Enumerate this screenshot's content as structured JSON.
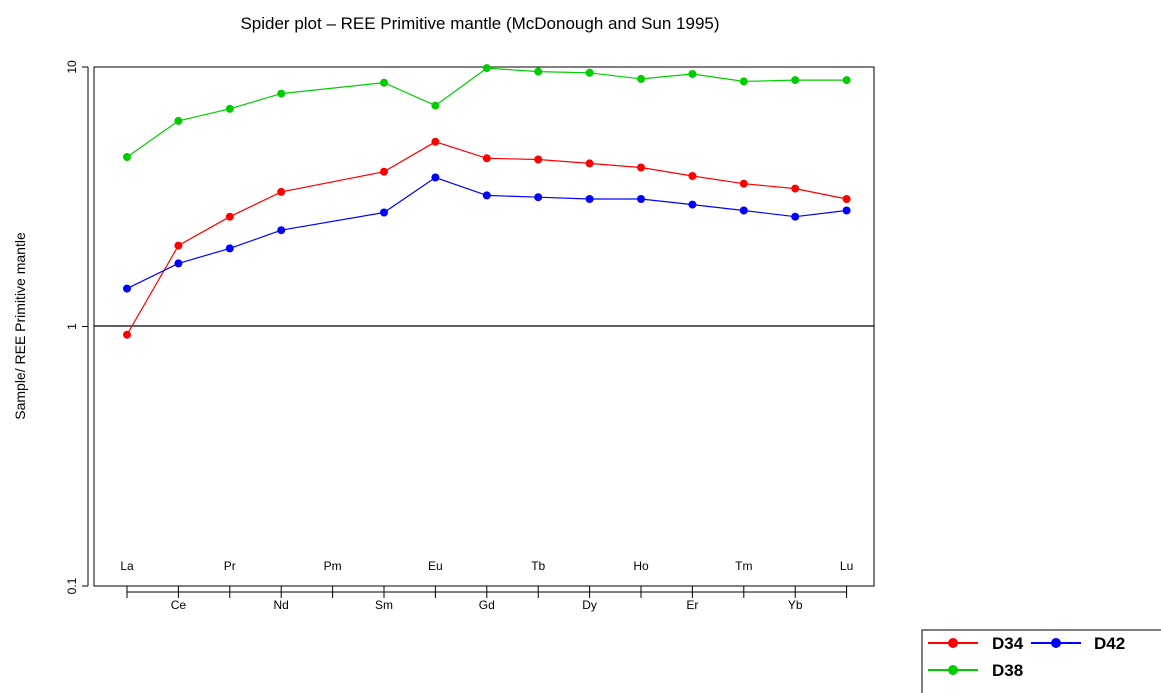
{
  "chart_data": {
    "type": "line",
    "title": "Spider plot –  REE Primitive mantle (McDonough  and  Sun 1995)",
    "xlabel": "",
    "ylabel": "Sample/ REE Primitive mantle",
    "y_scale": "log",
    "ylim": [
      0.1,
      10
    ],
    "y_ticks": [
      "0.1",
      "1",
      "10"
    ],
    "reference_line": 1,
    "grid": false,
    "categories": [
      "La",
      "Ce",
      "Pr",
      "Nd",
      "Pm",
      "Sm",
      "Eu",
      "Gd",
      "Tb",
      "Dy",
      "Ho",
      "Er",
      "Tm",
      "Yb",
      "Lu"
    ],
    "series": [
      {
        "name": "D34",
        "color": "#ff0000",
        "values": [
          0.93,
          2.05,
          2.65,
          3.3,
          null,
          3.95,
          5.15,
          4.45,
          4.4,
          4.25,
          4.1,
          3.8,
          3.55,
          3.4,
          3.1
        ]
      },
      {
        "name": "D38",
        "color": "#00cd00",
        "values": [
          4.5,
          6.2,
          6.9,
          7.9,
          null,
          8.7,
          7.1,
          9.9,
          9.6,
          9.5,
          9.0,
          9.4,
          8.8,
          8.9,
          8.9
        ]
      },
      {
        "name": "D42",
        "color": "#0000ff",
        "values": [
          1.4,
          1.75,
          2.0,
          2.35,
          null,
          2.75,
          3.75,
          3.2,
          3.15,
          3.1,
          3.1,
          2.95,
          2.8,
          2.65,
          2.8
        ]
      }
    ],
    "legend_position": "bottom-right"
  }
}
